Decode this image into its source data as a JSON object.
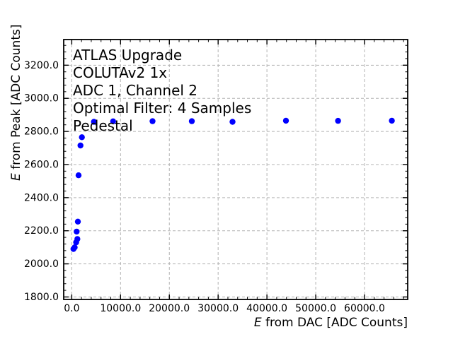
{
  "chart_data": {
    "type": "scatter",
    "title": "",
    "xlabel": "E from DAC [ADC Counts]",
    "ylabel": "E from Peak [ADC Counts]",
    "xlabel_italic_prefix": "E",
    "ylabel_italic_prefix": "E",
    "xlim": [
      -1650,
      68850
    ],
    "ylim": [
      1785,
      3355
    ],
    "x_major_ticks": [
      0,
      10000,
      20000,
      30000,
      40000,
      50000,
      60000
    ],
    "x_tick_labels": [
      "0.0",
      "10000.0",
      "20000.0",
      "30000.0",
      "40000.0",
      "50000.0",
      "60000.0"
    ],
    "y_major_ticks": [
      1800,
      2000,
      2200,
      2400,
      2600,
      2800,
      3000,
      3200
    ],
    "y_tick_labels": [
      "1800.0",
      "2000.0",
      "2200.0",
      "2400.0",
      "2600.0",
      "2800.0",
      "3000.0",
      "3200.0"
    ],
    "x_minor_step": 2000,
    "y_minor_step": 40,
    "grid": "major-only-dashed",
    "legend_position": "none",
    "marker": "circle",
    "marker_color": "#0000ff",
    "grid_color": "#b3b3b3",
    "spine_color": "#000000",
    "points": [
      {
        "x": 350,
        "y": 2090
      },
      {
        "x": 600,
        "y": 2100
      },
      {
        "x": 900,
        "y": 2130
      },
      {
        "x": 1150,
        "y": 2150
      },
      {
        "x": 1000,
        "y": 2195
      },
      {
        "x": 1250,
        "y": 2255
      },
      {
        "x": 1400,
        "y": 2535
      },
      {
        "x": 1790,
        "y": 2715
      },
      {
        "x": 2080,
        "y": 2765
      },
      {
        "x": 4550,
        "y": 2858
      },
      {
        "x": 8470,
        "y": 2861
      },
      {
        "x": 16560,
        "y": 2862
      },
      {
        "x": 24600,
        "y": 2862
      },
      {
        "x": 32950,
        "y": 2858
      },
      {
        "x": 43900,
        "y": 2865
      },
      {
        "x": 54570,
        "y": 2864
      },
      {
        "x": 65600,
        "y": 2865
      }
    ],
    "annotation": [
      "ATLAS Upgrade",
      "COLUTAv2 1x",
      "ADC 1, Channel 2",
      "Optimal Filter: 4 Samples",
      "Pedestal"
    ]
  }
}
